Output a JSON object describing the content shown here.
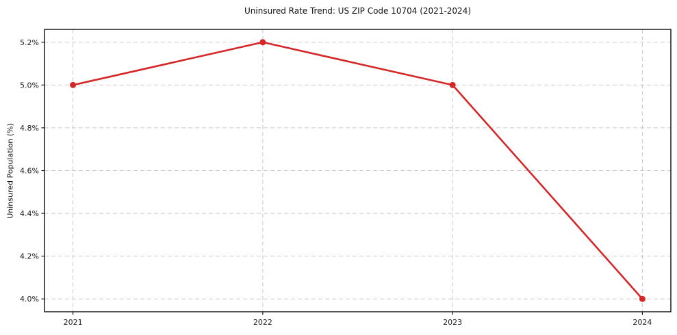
{
  "chart_data": {
    "type": "line",
    "title": "Uninsured Rate Trend: US ZIP Code 10704 (2021-2024)",
    "xlabel": "",
    "ylabel": "Uninsured Population (%)",
    "x": [
      2021,
      2022,
      2023,
      2024
    ],
    "x_tick_labels": [
      "2021",
      "2022",
      "2023",
      "2024"
    ],
    "series": [
      {
        "name": "Uninsured rate",
        "values": [
          5.0,
          5.2,
          5.0,
          4.0
        ]
      }
    ],
    "y_ticks": [
      4.0,
      4.2,
      4.4,
      4.6,
      4.8,
      5.0,
      5.2
    ],
    "y_tick_labels": [
      "4.0%",
      "4.2%",
      "4.4%",
      "4.6%",
      "4.8%",
      "5.0%",
      "5.2%"
    ],
    "xlim": [
      2020.85,
      2024.15
    ],
    "ylim": [
      3.94,
      5.26
    ],
    "grid": true,
    "grid_style": "dashed",
    "legend_position": "none",
    "colors": {
      "line": "#d62728",
      "marker": "#d62728",
      "grid": "#c9c9c9",
      "spine": "#1a1a1a",
      "text": "#1a1a1a"
    }
  }
}
